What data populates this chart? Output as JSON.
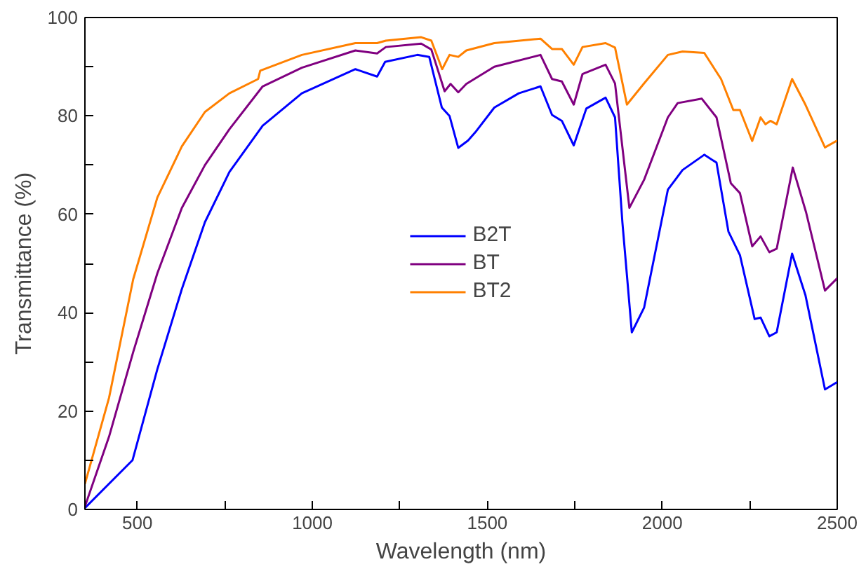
{
  "chart_data": {
    "type": "line",
    "xlabel": "Wavelength (nm)",
    "ylabel": "Transmittance (%)",
    "xlim": [
      350,
      2500
    ],
    "ylim": [
      0,
      100
    ],
    "xticks": [
      500,
      {
        "value": 750,
        "label": null
      },
      1000,
      {
        "value": 1250,
        "label": null
      },
      1500,
      {
        "value": 1750,
        "label": null
      },
      2000,
      {
        "value": 2250,
        "label": null
      },
      2500
    ],
    "yticks": [
      0,
      {
        "value": 10,
        "label": null
      },
      20,
      {
        "value": 30,
        "label": null
      },
      40,
      {
        "value": 50,
        "label": null
      },
      60,
      {
        "value": 70,
        "label": null
      },
      80,
      {
        "value": 90,
        "label": null
      },
      100
    ],
    "grid": false,
    "legend": "center",
    "line_style": "solid",
    "marker": "none",
    "series": [
      {
        "name": "B2T",
        "color": "#0000ff",
        "x": [
          350,
          486,
          557,
          627,
          693,
          763,
          858,
          970,
          1123,
          1185,
          1208,
          1300,
          1334,
          1370,
          1392,
          1417,
          1445,
          1466,
          1520,
          1590,
          1652,
          1685,
          1713,
          1747,
          1783,
          1838,
          1865,
          1886,
          1913,
          1948,
          2016,
          2058,
          2120,
          2155,
          2189,
          2222,
          2264,
          2281,
          2306,
          2327,
          2371,
          2409,
          2465,
          2500
        ],
        "values": [
          0.3,
          10,
          28.5,
          44.8,
          58.4,
          68.6,
          78,
          84.6,
          89.5,
          88,
          91,
          92.4,
          92,
          81.7,
          80,
          73.5,
          75,
          76.7,
          81.7,
          84.6,
          86,
          80.2,
          79,
          74,
          81.5,
          83.7,
          79.7,
          58.4,
          36,
          41,
          65,
          69,
          72.1,
          70.5,
          56.5,
          51.7,
          38.7,
          39,
          35.2,
          36,
          52,
          43.6,
          24.4,
          25.9
        ]
      },
      {
        "name": "BT",
        "color": "#800080",
        "x": [
          350,
          419,
          488,
          557,
          627,
          693,
          763,
          858,
          970,
          1123,
          1185,
          1210,
          1311,
          1340,
          1378,
          1395,
          1417,
          1440,
          1520,
          1652,
          1685,
          1713,
          1747,
          1772,
          1838,
          1865,
          1906,
          1948,
          2016,
          2044,
          2113,
          2155,
          2196,
          2222,
          2257,
          2281,
          2306,
          2327,
          2373,
          2411,
          2465,
          2500
        ],
        "values": [
          0.6,
          14.8,
          32,
          48,
          61.3,
          70,
          77.3,
          86,
          89.8,
          93.3,
          92.7,
          94,
          94.7,
          93.5,
          85,
          86.5,
          84.8,
          86.5,
          90,
          92.4,
          87.5,
          87,
          82.3,
          88.5,
          90.4,
          86.6,
          61.3,
          67,
          79.7,
          82.6,
          83.5,
          79.7,
          66.3,
          64.3,
          53.5,
          55.5,
          52.3,
          53,
          69.5,
          60.4,
          44.5,
          47
        ]
      },
      {
        "name": "BT2",
        "color": "#ff8000",
        "x": [
          350,
          419,
          488,
          557,
          627,
          693,
          763,
          845,
          851,
          970,
          1123,
          1185,
          1210,
          1311,
          1340,
          1371,
          1392,
          1417,
          1440,
          1520,
          1652,
          1685,
          1713,
          1747,
          1772,
          1838,
          1865,
          1899,
          1948,
          2016,
          2058,
          2120,
          2168,
          2203,
          2222,
          2257,
          2281,
          2295,
          2309,
          2327,
          2371,
          2409,
          2465,
          2500
        ],
        "values": [
          5.2,
          22.7,
          46.8,
          63.4,
          73.8,
          80.8,
          84.6,
          87.5,
          89.2,
          92.4,
          94.8,
          94.8,
          95.3,
          96,
          95.3,
          89.5,
          92.4,
          92,
          93.3,
          94.8,
          95.7,
          93.6,
          93.6,
          90.4,
          94,
          94.8,
          93.9,
          82.3,
          86.6,
          92.4,
          93.1,
          92.8,
          87.5,
          81.2,
          81.2,
          74.9,
          79.7,
          78.3,
          79,
          78.3,
          87.5,
          82.3,
          73.6,
          75
        ]
      }
    ]
  }
}
